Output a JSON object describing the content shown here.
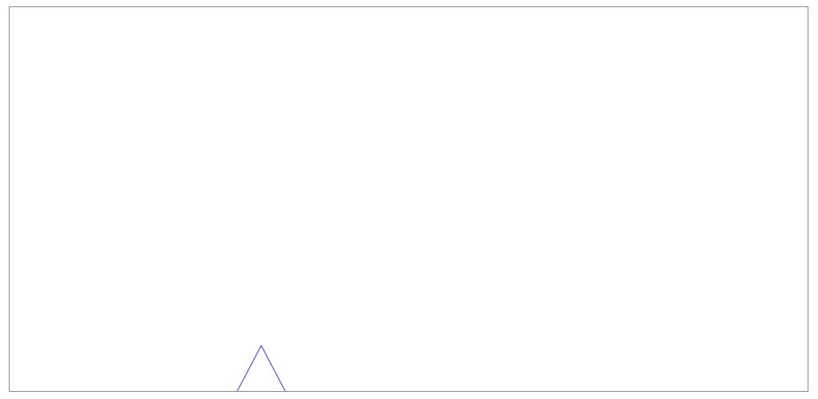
{
  "canvas": {
    "background_color": "#ffffff",
    "border_color": "#8a8a8a"
  },
  "shape": {
    "kind": "triangle-outline",
    "stroke_color": "#3333ff"
  }
}
